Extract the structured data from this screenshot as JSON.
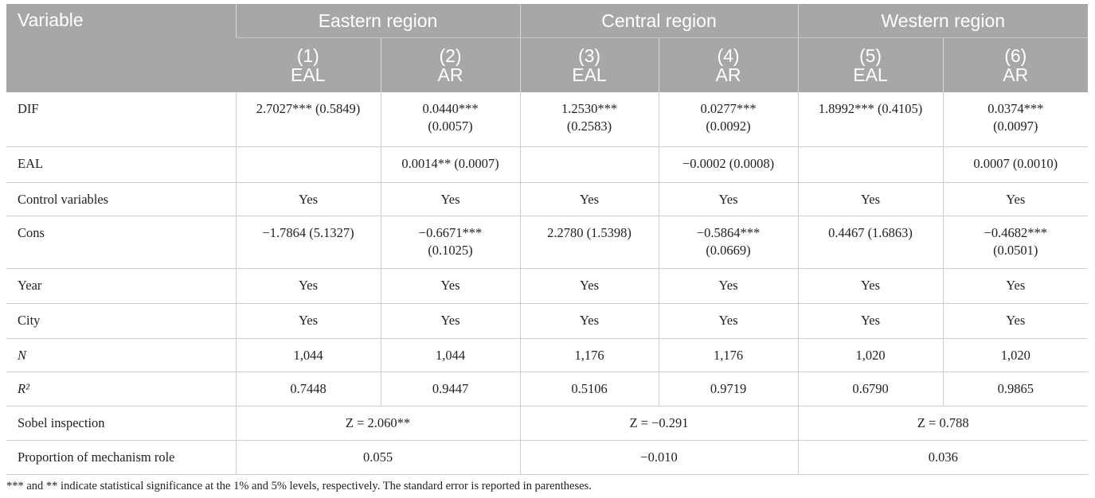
{
  "table": {
    "header": {
      "variable": "Variable",
      "regions": [
        "Eastern region",
        "Central region",
        "Western region"
      ],
      "columns": [
        {
          "number": "(1)",
          "name": "EAL"
        },
        {
          "number": "(2)",
          "name": "AR"
        },
        {
          "number": "(3)",
          "name": "EAL"
        },
        {
          "number": "(4)",
          "name": "AR"
        },
        {
          "number": "(5)",
          "name": "EAL"
        },
        {
          "number": "(6)",
          "name": "AR"
        }
      ]
    },
    "rows": [
      {
        "label": "DIF",
        "cells": [
          "2.7027*** (0.5849)",
          "0.0440*** (0.0057)",
          "1.2530*** (0.2583)",
          "0.0277*** (0.0092)",
          "1.8992*** (0.4105)",
          "0.0374*** (0.0097)"
        ]
      },
      {
        "label": "EAL",
        "cells": [
          null,
          "0.0014** (0.0007)",
          null,
          "−0.0002 (0.0008)",
          null,
          "0.0007 (0.0010)"
        ]
      },
      {
        "label": "Control variables",
        "cells": [
          "Yes",
          "Yes",
          "Yes",
          "Yes",
          "Yes",
          "Yes"
        ]
      },
      {
        "label": "Cons",
        "cells": [
          "−1.7864 (5.1327)",
          "−0.6671*** (0.1025)",
          "2.2780 (1.5398)",
          "−0.5864*** (0.0669)",
          "0.4467 (1.6863)",
          "−0.4682*** (0.0501)"
        ]
      },
      {
        "label": "Year",
        "cells": [
          "Yes",
          "Yes",
          "Yes",
          "Yes",
          "Yes",
          "Yes"
        ]
      },
      {
        "label": "City",
        "cells": [
          "Yes",
          "Yes",
          "Yes",
          "Yes",
          "Yes",
          "Yes"
        ]
      },
      {
        "label": "N",
        "italic": true,
        "cells": [
          "1,044",
          "1,044",
          "1,176",
          "1,176",
          "1,020",
          "1,020"
        ]
      },
      {
        "label": "R²",
        "italic": true,
        "cells": [
          "0.7448",
          "0.9447",
          "0.5106",
          "0.9719",
          "0.6790",
          "0.9865"
        ]
      },
      {
        "label": "Sobel inspection",
        "cells": [
          "Z = 2.060**",
          "Z = −0.291",
          "Z = 0.788"
        ]
      },
      {
        "label": "Proportion of mechanism role",
        "cells": [
          "0.055",
          "−0.010",
          "0.036"
        ]
      }
    ],
    "footnote": "*** and ** indicate statistical significance at the 1% and 5% levels, respectively. The standard error is reported in parentheses."
  }
}
